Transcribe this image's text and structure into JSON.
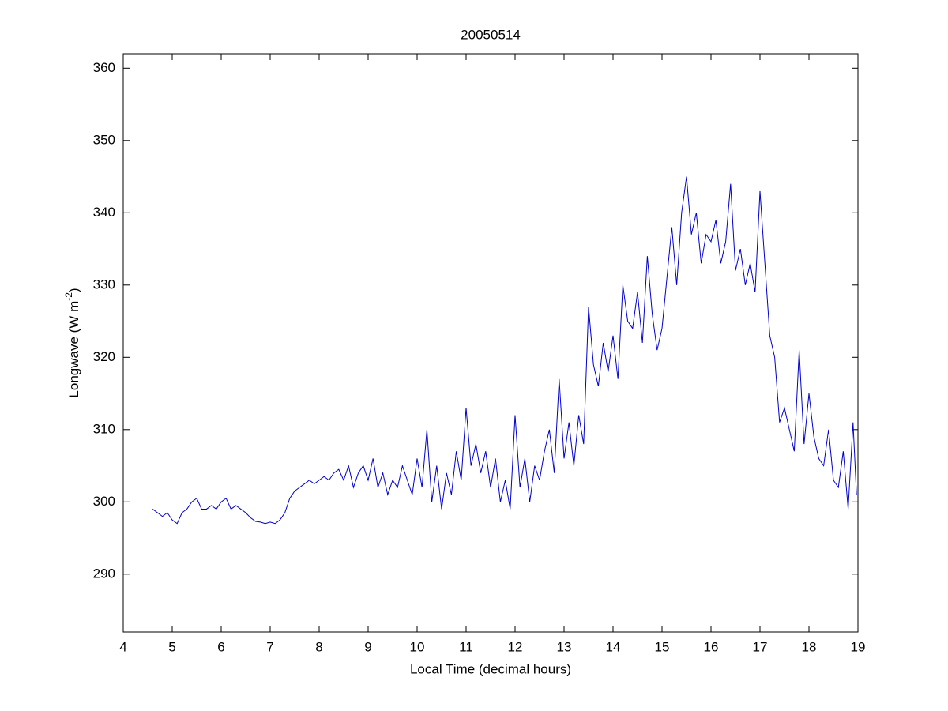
{
  "chart_data": {
    "type": "line",
    "title": "20050514",
    "xlabel": "Local Time (decimal hours)",
    "ylabel": "Longwave (W m",
    "ylabel_superscript": "-2",
    "ylabel_suffix": ")",
    "xlim": [
      4,
      19
    ],
    "xticks": [
      4,
      5,
      6,
      7,
      8,
      9,
      10,
      11,
      12,
      13,
      14,
      15,
      16,
      17,
      18,
      19
    ],
    "ylim": [
      282,
      362
    ],
    "yticks": [
      290,
      300,
      310,
      320,
      330,
      340,
      350,
      360
    ],
    "grid": false,
    "box": true,
    "series": [
      {
        "color": "#0000cc",
        "x": [
          4.6,
          4.7,
          4.8,
          4.9,
          5.0,
          5.1,
          5.2,
          5.3,
          5.4,
          5.5,
          5.6,
          5.7,
          5.8,
          5.9,
          6.0,
          6.1,
          6.2,
          6.3,
          6.4,
          6.5,
          6.6,
          6.7,
          6.8,
          6.9,
          7.0,
          7.1,
          7.2,
          7.3,
          7.4,
          7.5,
          7.6,
          7.7,
          7.8,
          7.9,
          8.0,
          8.1,
          8.2,
          8.3,
          8.4,
          8.5,
          8.6,
          8.7,
          8.8,
          8.9,
          9.0,
          9.1,
          9.2,
          9.3,
          9.4,
          9.5,
          9.6,
          9.7,
          9.8,
          9.9,
          10.0,
          10.1,
          10.2,
          10.3,
          10.4,
          10.5,
          10.6,
          10.7,
          10.8,
          10.9,
          11.0,
          11.1,
          11.2,
          11.3,
          11.4,
          11.5,
          11.6,
          11.7,
          11.8,
          11.9,
          12.0,
          12.1,
          12.2,
          12.3,
          12.4,
          12.5,
          12.6,
          12.7,
          12.8,
          12.9,
          13.0,
          13.1,
          13.2,
          13.3,
          13.4,
          13.5,
          13.6,
          13.7,
          13.8,
          13.9,
          14.0,
          14.1,
          14.2,
          14.3,
          14.4,
          14.5,
          14.6,
          14.7,
          14.8,
          14.9,
          15.0,
          15.1,
          15.2,
          15.3,
          15.4,
          15.5,
          15.6,
          15.7,
          15.8,
          15.9,
          16.0,
          16.1,
          16.2,
          16.3,
          16.4,
          16.5,
          16.6,
          16.7,
          16.8,
          16.9,
          17.0,
          17.1,
          17.2,
          17.3,
          17.4,
          17.5,
          17.6,
          17.7,
          17.8,
          17.9,
          18.0,
          18.1,
          18.2,
          18.3,
          18.4,
          18.5,
          18.6,
          18.7,
          18.8,
          18.9,
          18.97
        ],
        "values": [
          299,
          298.5,
          298,
          298.5,
          297.5,
          297,
          298.5,
          299,
          300,
          300.5,
          299,
          299,
          299.5,
          299,
          300,
          300.5,
          299,
          299.5,
          299,
          298.5,
          297.8,
          297.3,
          297.2,
          297,
          297.2,
          297,
          297.5,
          298.5,
          300.5,
          301.5,
          302,
          302.5,
          303,
          302.5,
          303,
          303.5,
          303,
          304,
          304.5,
          303,
          305,
          302,
          304,
          305,
          303,
          306,
          302,
          304,
          301,
          303,
          302,
          305,
          303,
          301,
          306,
          302,
          310,
          300,
          305,
          299,
          304,
          301,
          307,
          303,
          313,
          305,
          308,
          304,
          307,
          302,
          306,
          300,
          303,
          299,
          312,
          302,
          306,
          300,
          305,
          303,
          307,
          310,
          304,
          317,
          306,
          311,
          305,
          312,
          308,
          327,
          319,
          316,
          322,
          318,
          323,
          317,
          330,
          325,
          324,
          329,
          322,
          334,
          326,
          321,
          324,
          331,
          338,
          330,
          340,
          345,
          337,
          340,
          333,
          337,
          336,
          339,
          333,
          336,
          344,
          332,
          335,
          330,
          333,
          329,
          343,
          333,
          323,
          320,
          311,
          313,
          310,
          307,
          321,
          308,
          315,
          309,
          306,
          305,
          310,
          303,
          302,
          307,
          299,
          311,
          301
        ]
      }
    ]
  }
}
